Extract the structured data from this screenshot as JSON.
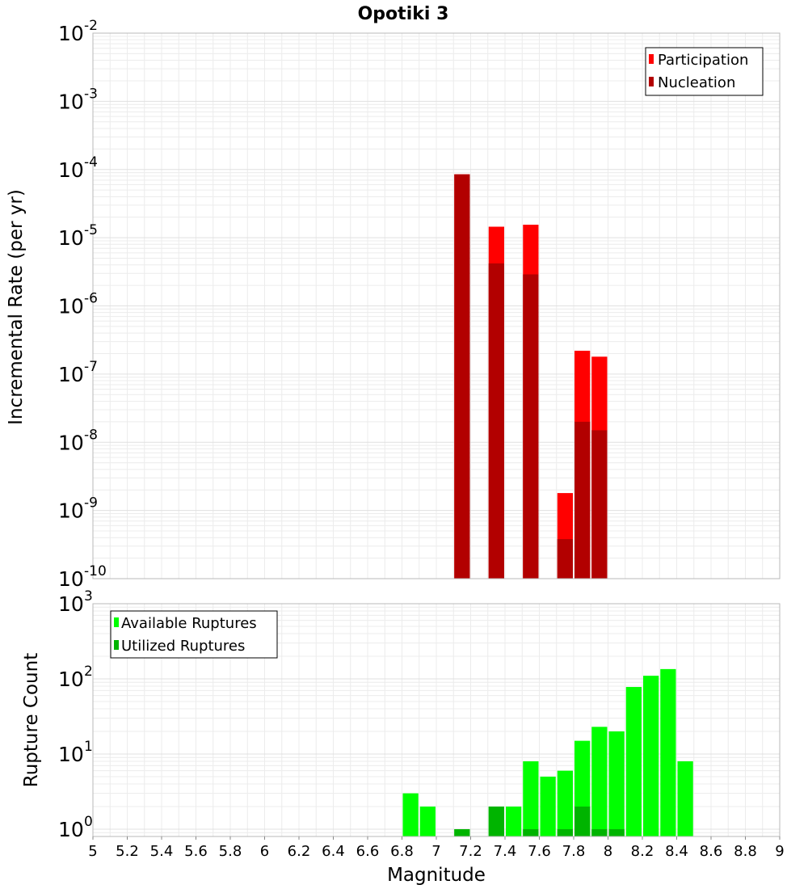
{
  "chart_data": [
    {
      "type": "bar",
      "title": "Opotiki 3",
      "ylabel": "Incremental Rate (per yr)",
      "xlabel": "Magnitude",
      "yscale": "log",
      "ylim": [
        1e-10,
        0.01
      ],
      "xlim": [
        5,
        9
      ],
      "bin_width": 0.1,
      "legend": {
        "position": "top-right",
        "entries": [
          "Participation",
          "Nucleation"
        ]
      },
      "series": [
        {
          "name": "Participation",
          "color": "#ff0000",
          "x": [
            7.15,
            7.35,
            7.55,
            7.75,
            7.85,
            7.95
          ],
          "values": [
            8.5e-05,
            1.45e-05,
            1.55e-05,
            1.8e-09,
            2.2e-07,
            1.8e-07
          ]
        },
        {
          "name": "Nucleation",
          "color": "#b20000",
          "x": [
            7.15,
            7.35,
            7.55,
            7.75,
            7.85,
            7.95
          ],
          "values": [
            8.5e-05,
            4.2e-06,
            2.9e-06,
            3.8e-10,
            2e-08,
            1.5e-08
          ]
        }
      ],
      "yticks": [
        {
          "base": "10",
          "exp": "-10"
        },
        {
          "base": "10",
          "exp": "-9"
        },
        {
          "base": "10",
          "exp": "-8"
        },
        {
          "base": "10",
          "exp": "-7"
        },
        {
          "base": "10",
          "exp": "-6"
        },
        {
          "base": "10",
          "exp": "-5"
        },
        {
          "base": "10",
          "exp": "-4"
        },
        {
          "base": "10",
          "exp": "-3"
        },
        {
          "base": "10",
          "exp": "-2"
        }
      ]
    },
    {
      "type": "bar",
      "ylabel": "Rupture Count",
      "xlabel": "Magnitude",
      "yscale": "log",
      "ylim": [
        0.8,
        1000
      ],
      "xlim": [
        5,
        9
      ],
      "bin_width": 0.1,
      "legend": {
        "position": "top-left",
        "entries": [
          "Available Ruptures",
          "Utilized Ruptures"
        ]
      },
      "series": [
        {
          "name": "Available Ruptures",
          "color": "#00ff00",
          "x": [
            6.85,
            6.95,
            7.15,
            7.35,
            7.45,
            7.55,
            7.65,
            7.75,
            7.85,
            7.95,
            8.05,
            8.15,
            8.25,
            8.35,
            8.45
          ],
          "values": [
            3,
            2,
            1,
            2,
            2,
            8,
            5,
            6,
            15,
            23,
            20,
            78,
            110,
            135,
            8
          ]
        },
        {
          "name": "Utilized Ruptures",
          "color": "#00b400",
          "x": [
            7.15,
            7.35,
            7.55,
            7.75,
            7.85,
            7.95,
            8.05
          ],
          "values": [
            1,
            2,
            1,
            1,
            2,
            1,
            1
          ]
        }
      ],
      "yticks": [
        {
          "base": "10",
          "exp": "0"
        },
        {
          "base": "10",
          "exp": "1"
        },
        {
          "base": "10",
          "exp": "2"
        },
        {
          "base": "10",
          "exp": "3"
        }
      ],
      "xticks": [
        "5",
        "5.2",
        "5.4",
        "5.6",
        "5.8",
        "6",
        "6.2",
        "6.4",
        "6.6",
        "6.8",
        "7",
        "7.2",
        "7.4",
        "7.6",
        "7.8",
        "8",
        "8.2",
        "8.4",
        "8.6",
        "8.8",
        "9"
      ]
    }
  ]
}
